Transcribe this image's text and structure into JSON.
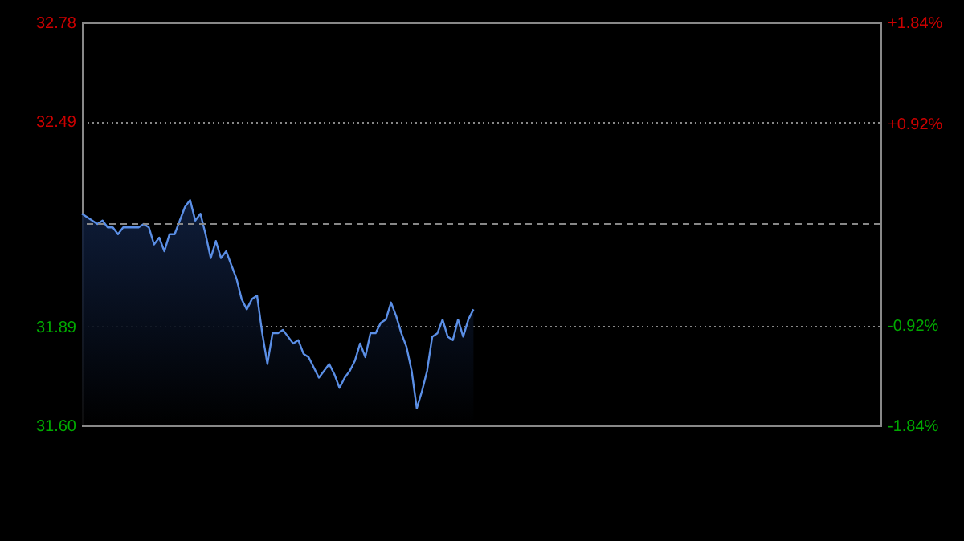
{
  "chart_data": {
    "type": "area",
    "categories": [
      null,
      null,
      null,
      null,
      null,
      null,
      null,
      null,
      null,
      null,
      null,
      null,
      null,
      null,
      null,
      null,
      null,
      null,
      null,
      null,
      null,
      null,
      null,
      null,
      null,
      null,
      null,
      null,
      null,
      null,
      null,
      null,
      null,
      null,
      null,
      null,
      null,
      null,
      null,
      null,
      null,
      null,
      null,
      null,
      null,
      null,
      null,
      null,
      null,
      null,
      null,
      null,
      null,
      null,
      null,
      null,
      null,
      null,
      null,
      null,
      null,
      null,
      null,
      null,
      null,
      null,
      null,
      null,
      null,
      null,
      null,
      null,
      null,
      null,
      null,
      null,
      null,
      null,
      null,
      null,
      null,
      null,
      null,
      null,
      null,
      null,
      null,
      null,
      null,
      null,
      null,
      null,
      null,
      null,
      null,
      null,
      null,
      null,
      null,
      null,
      null,
      null,
      null,
      null,
      null,
      null,
      null,
      null,
      null,
      null,
      null,
      null,
      null,
      null,
      null,
      null,
      null,
      null,
      null,
      null,
      null,
      null,
      null,
      null,
      null,
      null,
      null,
      null,
      null,
      null,
      null,
      null,
      null,
      null,
      null,
      null,
      null,
      null,
      null,
      null,
      null,
      null,
      null,
      null,
      null,
      null,
      null,
      null,
      null,
      null,
      null,
      null,
      null,
      null,
      null,
      null
    ],
    "series": [
      {
        "color": "#5b8fe6",
        "values": [
          32.22,
          32.21,
          32.2,
          32.19,
          32.2,
          32.18,
          32.18,
          32.16,
          32.18,
          32.18,
          32.18,
          32.18,
          32.19,
          32.18,
          32.13,
          32.15,
          32.11,
          32.16,
          32.16,
          32.2,
          32.24,
          32.26,
          32.2,
          32.22,
          32.16,
          32.09,
          32.14,
          32.09,
          32.11,
          32.07,
          32.03,
          31.97,
          31.94,
          31.97,
          31.98,
          31.87,
          31.78,
          31.87,
          31.87,
          31.88,
          31.86,
          31.84,
          31.85,
          31.81,
          31.8,
          31.77,
          31.74,
          31.76,
          31.78,
          31.75,
          31.71,
          31.74,
          31.76,
          31.79,
          31.84,
          31.8,
          31.87,
          31.87,
          31.9,
          31.91,
          31.96,
          31.92,
          31.87,
          31.83,
          31.76,
          31.65,
          31.7,
          31.76,
          31.86,
          31.87,
          31.91,
          31.86,
          31.85,
          31.91,
          31.86,
          31.91,
          31.94,
          null,
          null,
          null,
          null,
          null,
          null,
          null,
          null,
          null,
          null,
          null,
          null,
          null,
          null,
          null,
          null,
          null,
          null,
          null,
          null,
          null,
          null,
          null,
          null,
          null,
          null,
          null,
          null,
          null,
          null,
          null,
          null,
          null,
          null,
          null,
          null,
          null,
          null,
          null,
          null,
          null,
          null,
          null,
          null,
          null,
          null,
          null,
          null,
          null,
          null,
          null,
          null,
          null,
          null,
          null,
          null,
          null,
          null,
          null,
          null,
          null,
          null,
          null,
          null,
          null,
          null,
          null,
          null,
          null,
          null,
          null,
          null,
          null,
          null,
          null,
          null,
          null,
          null,
          null
        ]
      }
    ],
    "ylim": [
      31.6,
      32.78
    ],
    "yticks": [
      {
        "value": 31.6,
        "label": "31.60"
      },
      {
        "value": 31.89,
        "label": "31.89"
      },
      {
        "value": 32.49,
        "label": "32.49"
      },
      {
        "value": 32.78,
        "label": "32.78"
      }
    ],
    "y2lim": [
      -1.84,
      1.84
    ],
    "y2ticks": [
      {
        "value": -1.84,
        "label": "-1.84%"
      },
      {
        "value": -0.92,
        "label": "-0.92%"
      },
      {
        "value": 0.92,
        "label": "+0.92%"
      },
      {
        "value": 1.84,
        "label": "+1.84%"
      }
    ],
    "ref_lines": [
      {
        "axis": "y",
        "value": 32.19,
        "line_style": "dashed",
        "color": "#888888"
      }
    ],
    "grid": "y",
    "tick_labels": "y"
  }
}
